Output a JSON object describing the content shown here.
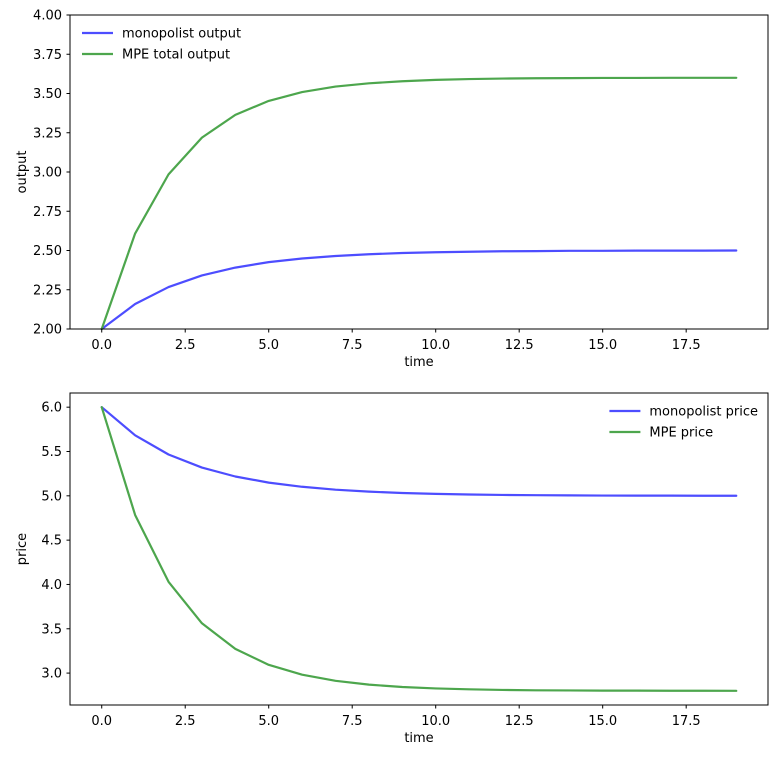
{
  "figure": {
    "background": "#ffffff",
    "axes_color": "#000000",
    "text_color": "#000000"
  },
  "chart_data": [
    {
      "id": "output",
      "type": "line",
      "title": "",
      "xlabel": "time",
      "ylabel": "output",
      "xlim": [
        -0.95,
        19.95
      ],
      "ylim": [
        2.0,
        4.0
      ],
      "xticks": [
        0,
        2.5,
        5,
        7.5,
        10,
        12.5,
        15,
        17.5
      ],
      "xtick_labels": [
        "0.0",
        "2.5",
        "5.0",
        "7.5",
        "10.0",
        "12.5",
        "15.0",
        "17.5"
      ],
      "yticks": [
        2.0,
        2.25,
        2.5,
        2.75,
        3.0,
        3.25,
        3.5,
        3.75,
        4.0
      ],
      "ytick_labels": [
        "2.00",
        "2.25",
        "2.50",
        "2.75",
        "3.00",
        "3.25",
        "3.50",
        "3.75",
        "4.00"
      ],
      "grid": false,
      "legend_position": "upper-left",
      "x": [
        0,
        1,
        2,
        3,
        4,
        5,
        6,
        7,
        8,
        9,
        10,
        11,
        12,
        13,
        14,
        15,
        16,
        17,
        18,
        19
      ],
      "series": [
        {
          "name": "monopolist output",
          "slug": "monopolist-output",
          "color": "#4d4dff",
          "values": [
            2.0,
            2.159,
            2.267,
            2.341,
            2.391,
            2.426,
            2.449,
            2.465,
            2.476,
            2.484,
            2.489,
            2.492,
            2.495,
            2.496,
            2.498,
            2.498,
            2.499,
            2.499,
            2.499,
            2.5
          ]
        },
        {
          "name": "MPE total output",
          "slug": "mpe-total-output",
          "color": "#4da64d",
          "values": [
            2.0,
            2.608,
            2.985,
            3.219,
            3.364,
            3.453,
            3.509,
            3.544,
            3.565,
            3.578,
            3.587,
            3.592,
            3.595,
            3.597,
            3.598,
            3.599,
            3.599,
            3.6,
            3.6,
            3.6
          ]
        }
      ]
    },
    {
      "id": "price",
      "type": "line",
      "title": "",
      "xlabel": "time",
      "ylabel": "price",
      "xlim": [
        -0.95,
        19.95
      ],
      "ylim": [
        2.64,
        6.16
      ],
      "xticks": [
        0,
        2.5,
        5,
        7.5,
        10,
        12.5,
        15,
        17.5
      ],
      "xtick_labels": [
        "0.0",
        "2.5",
        "5.0",
        "7.5",
        "10.0",
        "12.5",
        "15.0",
        "17.5"
      ],
      "yticks": [
        3.0,
        3.5,
        4.0,
        4.5,
        5.0,
        5.5,
        6.0
      ],
      "ytick_labels": [
        "3.0",
        "3.5",
        "4.0",
        "4.5",
        "5.0",
        "5.5",
        "6.0"
      ],
      "grid": false,
      "legend_position": "upper-right",
      "x": [
        0,
        1,
        2,
        3,
        4,
        5,
        6,
        7,
        8,
        9,
        10,
        11,
        12,
        13,
        14,
        15,
        16,
        17,
        18,
        19
      ],
      "series": [
        {
          "name": "monopolist price",
          "slug": "monopolist-price",
          "color": "#4d4dff",
          "values": [
            6.0,
            5.683,
            5.466,
            5.319,
            5.218,
            5.149,
            5.102,
            5.069,
            5.047,
            5.032,
            5.022,
            5.015,
            5.01,
            5.007,
            5.005,
            5.003,
            5.002,
            5.002,
            5.001,
            5.001
          ]
        },
        {
          "name": "MPE price",
          "slug": "mpe-price",
          "color": "#4da64d",
          "values": [
            6.0,
            4.784,
            4.03,
            3.562,
            3.273,
            3.093,
            2.982,
            2.913,
            2.87,
            2.843,
            2.827,
            2.817,
            2.81,
            2.806,
            2.804,
            2.802,
            2.802,
            2.801,
            2.801,
            2.8
          ]
        }
      ]
    }
  ]
}
